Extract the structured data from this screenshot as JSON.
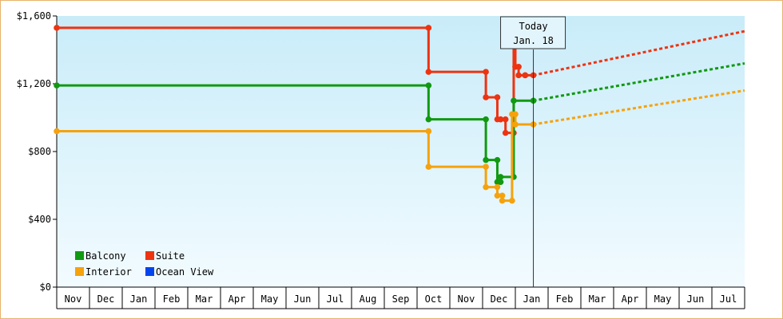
{
  "colors": {
    "background_top": "#c9ecf9",
    "background_bottom": "#f2fbff",
    "frame_border": "#e8b36c"
  },
  "today_marker": {
    "line1": "Today",
    "line2": "Jan. 18"
  },
  "legend": [
    {
      "label": "Balcony",
      "color": "#119911"
    },
    {
      "label": "Suite",
      "color": "#ee3311"
    },
    {
      "label": "Interior",
      "color": "#f5a20c"
    },
    {
      "label": "Ocean View",
      "color": "#0044ee"
    }
  ],
  "chart_data": {
    "type": "line",
    "title": "",
    "xlabel": "",
    "ylabel": "",
    "x_tick_labels": [
      "Nov",
      "Dec",
      "Jan",
      "Feb",
      "Mar",
      "Apr",
      "May",
      "Jun",
      "Jul",
      "Aug",
      "Sep",
      "Oct",
      "Nov",
      "Dec",
      "Jan",
      "Feb",
      "Mar",
      "Apr",
      "May",
      "Jun",
      "Jul"
    ],
    "y_tick_labels": [
      "$0",
      "$400",
      "$800",
      "$1,200",
      "$1,600"
    ],
    "ylim": [
      0,
      1600
    ],
    "grid": false,
    "legend_position": "bottom-left",
    "series": [
      {
        "name": "Suite",
        "color": "#ee3311",
        "line": "step",
        "x": [
          0,
          11.35,
          11.35,
          13.1,
          13.1,
          13.45,
          13.45,
          13.55,
          13.55,
          13.7,
          13.7,
          13.95,
          13.95,
          14.0,
          14.0,
          14.1,
          14.1,
          14.3,
          14.3,
          14.55
        ],
        "y": [
          1530,
          1530,
          1270,
          1270,
          1120,
          1120,
          990,
          990,
          990,
          990,
          910,
          910,
          1500,
          1500,
          1300,
          1300,
          1250,
          1250,
          1250,
          1250
        ]
      },
      {
        "name": "Balcony",
        "color": "#119911",
        "line": "step",
        "x": [
          0,
          11.35,
          11.35,
          13.1,
          13.1,
          13.45,
          13.45,
          13.55,
          13.55,
          13.95,
          13.95,
          14.55
        ],
        "y": [
          1190,
          1190,
          990,
          990,
          750,
          750,
          620,
          620,
          650,
          650,
          1100,
          1100
        ]
      },
      {
        "name": "Interior",
        "color": "#f5a20c",
        "line": "step",
        "x": [
          0,
          11.35,
          11.35,
          13.1,
          13.1,
          13.45,
          13.45,
          13.6,
          13.6,
          13.9,
          13.9,
          14.0,
          14.0,
          14.55
        ],
        "y": [
          920,
          920,
          710,
          710,
          590,
          590,
          540,
          540,
          510,
          510,
          1020,
          1020,
          960,
          960
        ]
      }
    ],
    "forecast": [
      {
        "name": "Suite",
        "color": "#ee3311",
        "x": [
          14.55,
          21
        ],
        "y": [
          1250,
          1510
        ]
      },
      {
        "name": "Balcony",
        "color": "#119911",
        "x": [
          14.55,
          21
        ],
        "y": [
          1100,
          1320
        ]
      },
      {
        "name": "Interior",
        "color": "#f5a20c",
        "x": [
          14.55,
          21
        ],
        "y": [
          960,
          1160
        ]
      }
    ],
    "today_x": 14.55
  }
}
